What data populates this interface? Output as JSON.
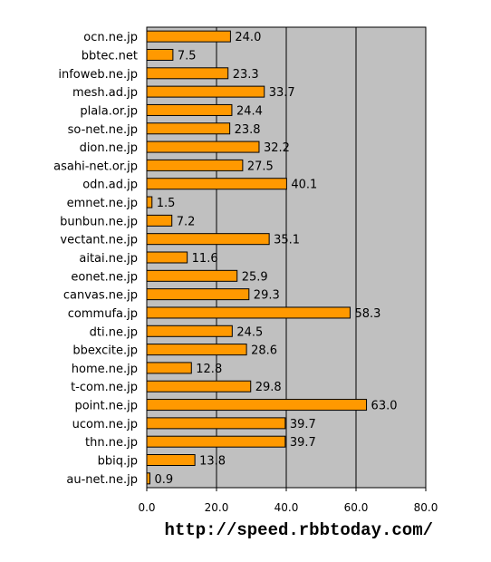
{
  "chart_data": {
    "type": "bar",
    "orientation": "horizontal",
    "categories": [
      "ocn.ne.jp",
      "bbtec.net",
      "infoweb.ne.jp",
      "mesh.ad.jp",
      "plala.or.jp",
      "so-net.ne.jp",
      "dion.ne.jp",
      "asahi-net.or.jp",
      "odn.ad.jp",
      "emnet.ne.jp",
      "bunbun.ne.jp",
      "vectant.ne.jp",
      "aitai.ne.jp",
      "eonet.ne.jp",
      "canvas.ne.jp",
      "commufa.jp",
      "dti.ne.jp",
      "bbexcite.jp",
      "home.ne.jp",
      "t-com.ne.jp",
      "point.ne.jp",
      "ucom.ne.jp",
      "thn.ne.jp",
      "bbiq.jp",
      "au-net.ne.jp"
    ],
    "values": [
      24.0,
      7.5,
      23.3,
      33.7,
      24.4,
      23.8,
      32.2,
      27.5,
      40.1,
      1.5,
      7.2,
      35.1,
      11.6,
      25.9,
      29.3,
      58.3,
      24.5,
      28.6,
      12.8,
      29.8,
      63.0,
      39.7,
      39.7,
      13.8,
      0.9
    ],
    "value_labels": [
      "24.0",
      "7.5",
      "23.3",
      "33.7",
      "24.4",
      "23.8",
      "32.2",
      "27.5",
      "40.1",
      "1.5",
      "7.2",
      "35.1",
      "11.6",
      "25.9",
      "29.3",
      "58.3",
      "24.5",
      "28.6",
      "12.8",
      "29.8",
      "63.0",
      "39.7",
      "39.7",
      "13.8",
      "0.9"
    ],
    "xlim": [
      0,
      80
    ],
    "x_ticks": [
      "0.0",
      "20.0",
      "40.0",
      "60.0",
      "80.0"
    ],
    "grid": true,
    "bar_color": "#FF9900",
    "plot_background": "#C0C0C0"
  },
  "footer": {
    "url": "http://speed.rbbtoday.com/"
  }
}
